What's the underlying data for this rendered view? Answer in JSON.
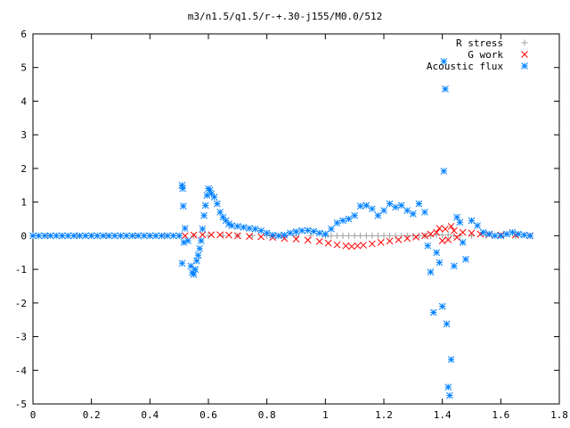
{
  "chart_data": {
    "type": "scatter",
    "title": "m3/n1.5/q1.5/r-+.30-j155/M0.0/512",
    "xlabel": "",
    "ylabel": "",
    "xlim": [
      0,
      1.8
    ],
    "ylim": [
      -5,
      6
    ],
    "grid": false,
    "legend_position": "top-right",
    "x_ticks": [
      "0",
      "0.2",
      "0.4",
      "0.6",
      "0.8",
      "1",
      "1.2",
      "1.4",
      "1.6",
      "1.8"
    ],
    "y_ticks": [
      "-5",
      "-4",
      "-3",
      "-2",
      "-1",
      "0",
      "1",
      "2",
      "3",
      "4",
      "5",
      "6"
    ],
    "x_tick_values": [
      0,
      0.2,
      0.4,
      0.6,
      0.8,
      1.0,
      1.2,
      1.4,
      1.6,
      1.8
    ],
    "y_tick_values": [
      -5,
      -4,
      -3,
      -2,
      -1,
      0,
      1,
      2,
      3,
      4,
      5,
      6
    ],
    "series": [
      {
        "name": "R stress",
        "marker": "plus",
        "color": "#a0a0a0",
        "points": [
          [
            0.0,
            0
          ],
          [
            0.05,
            0
          ],
          [
            0.1,
            0
          ],
          [
            0.15,
            0
          ],
          [
            0.2,
            0
          ],
          [
            0.25,
            0
          ],
          [
            0.3,
            0
          ],
          [
            0.35,
            0
          ],
          [
            0.4,
            0
          ],
          [
            0.45,
            0
          ],
          [
            0.5,
            0
          ],
          [
            0.55,
            0
          ],
          [
            0.6,
            0
          ],
          [
            0.65,
            0
          ],
          [
            0.7,
            0
          ],
          [
            0.75,
            0
          ],
          [
            0.8,
            0
          ],
          [
            0.85,
            0
          ],
          [
            0.9,
            0
          ],
          [
            0.95,
            0
          ],
          [
            1.0,
            0
          ],
          [
            1.02,
            0
          ],
          [
            1.04,
            0
          ],
          [
            1.06,
            0
          ],
          [
            1.08,
            0
          ],
          [
            1.1,
            0
          ],
          [
            1.12,
            0
          ],
          [
            1.14,
            0
          ],
          [
            1.16,
            0
          ],
          [
            1.18,
            0
          ],
          [
            1.2,
            0
          ],
          [
            1.22,
            0
          ],
          [
            1.24,
            0
          ],
          [
            1.26,
            0
          ],
          [
            1.28,
            0
          ],
          [
            1.3,
            0
          ],
          [
            1.32,
            0
          ],
          [
            1.34,
            0
          ],
          [
            1.36,
            0
          ],
          [
            1.38,
            0.02
          ],
          [
            1.4,
            0.02
          ],
          [
            1.42,
            0.02
          ],
          [
            1.44,
            0
          ],
          [
            1.46,
            0
          ],
          [
            1.5,
            0
          ],
          [
            1.55,
            0
          ],
          [
            1.6,
            0
          ],
          [
            1.65,
            0
          ],
          [
            1.7,
            0
          ]
        ]
      },
      {
        "name": "G work",
        "marker": "x",
        "color": "#ff0000",
        "points": [
          [
            0.52,
            0.0
          ],
          [
            0.55,
            0.02
          ],
          [
            0.58,
            0.03
          ],
          [
            0.61,
            0.03
          ],
          [
            0.64,
            0.03
          ],
          [
            0.67,
            0.02
          ],
          [
            0.7,
            0.0
          ],
          [
            0.74,
            -0.02
          ],
          [
            0.78,
            -0.03
          ],
          [
            0.82,
            -0.05
          ],
          [
            0.86,
            -0.08
          ],
          [
            0.9,
            -0.1
          ],
          [
            0.94,
            -0.13
          ],
          [
            0.98,
            -0.17
          ],
          [
            1.01,
            -0.22
          ],
          [
            1.04,
            -0.27
          ],
          [
            1.07,
            -0.3
          ],
          [
            1.09,
            -0.32
          ],
          [
            1.11,
            -0.3
          ],
          [
            1.13,
            -0.28
          ],
          [
            1.16,
            -0.24
          ],
          [
            1.19,
            -0.2
          ],
          [
            1.22,
            -0.16
          ],
          [
            1.25,
            -0.12
          ],
          [
            1.28,
            -0.08
          ],
          [
            1.31,
            -0.04
          ],
          [
            1.34,
            0.0
          ],
          [
            1.36,
            0.05
          ],
          [
            1.38,
            0.1
          ],
          [
            1.39,
            0.22
          ],
          [
            1.4,
            -0.15
          ],
          [
            1.41,
            0.2
          ],
          [
            1.42,
            -0.12
          ],
          [
            1.43,
            0.28
          ],
          [
            1.44,
            0.15
          ],
          [
            1.45,
            -0.05
          ],
          [
            1.47,
            0.1
          ],
          [
            1.5,
            0.08
          ],
          [
            1.53,
            0.05
          ],
          [
            1.56,
            0.04
          ],
          [
            1.6,
            0.02
          ],
          [
            1.65,
            0.02
          ],
          [
            1.7,
            0.0
          ]
        ]
      },
      {
        "name": "Acoustic flux",
        "marker": "star",
        "color": "#0080ff",
        "points": [
          [
            0.0,
            0
          ],
          [
            0.02,
            0
          ],
          [
            0.04,
            0
          ],
          [
            0.06,
            0
          ],
          [
            0.08,
            0
          ],
          [
            0.1,
            0
          ],
          [
            0.12,
            0
          ],
          [
            0.14,
            0
          ],
          [
            0.16,
            0
          ],
          [
            0.18,
            0
          ],
          [
            0.2,
            0
          ],
          [
            0.22,
            0
          ],
          [
            0.24,
            0
          ],
          [
            0.26,
            0
          ],
          [
            0.28,
            0
          ],
          [
            0.3,
            0
          ],
          [
            0.32,
            0
          ],
          [
            0.34,
            0
          ],
          [
            0.36,
            0
          ],
          [
            0.38,
            0
          ],
          [
            0.4,
            0
          ],
          [
            0.42,
            0
          ],
          [
            0.44,
            0
          ],
          [
            0.46,
            0
          ],
          [
            0.48,
            0
          ],
          [
            0.5,
            0
          ],
          [
            0.51,
            1.5
          ],
          [
            0.512,
            1.4
          ],
          [
            0.514,
            0.88
          ],
          [
            0.516,
            -0.2
          ],
          [
            0.51,
            -0.82
          ],
          [
            0.52,
            0.22
          ],
          [
            0.53,
            -0.15
          ],
          [
            0.54,
            -0.9
          ],
          [
            0.545,
            -1.1
          ],
          [
            0.55,
            -1.15
          ],
          [
            0.555,
            -1.0
          ],
          [
            0.56,
            -0.75
          ],
          [
            0.565,
            -0.58
          ],
          [
            0.57,
            -0.38
          ],
          [
            0.575,
            -0.15
          ],
          [
            0.58,
            0.2
          ],
          [
            0.585,
            0.6
          ],
          [
            0.59,
            0.9
          ],
          [
            0.595,
            1.2
          ],
          [
            0.6,
            1.4
          ],
          [
            0.605,
            1.35
          ],
          [
            0.61,
            1.25
          ],
          [
            0.62,
            1.15
          ],
          [
            0.63,
            0.95
          ],
          [
            0.64,
            0.7
          ],
          [
            0.65,
            0.55
          ],
          [
            0.66,
            0.45
          ],
          [
            0.67,
            0.35
          ],
          [
            0.68,
            0.3
          ],
          [
            0.7,
            0.28
          ],
          [
            0.72,
            0.25
          ],
          [
            0.74,
            0.22
          ],
          [
            0.76,
            0.2
          ],
          [
            0.78,
            0.15
          ],
          [
            0.8,
            0.08
          ],
          [
            0.82,
            0.02
          ],
          [
            0.84,
            0.0
          ],
          [
            0.86,
            0.02
          ],
          [
            0.88,
            0.08
          ],
          [
            0.9,
            0.12
          ],
          [
            0.92,
            0.15
          ],
          [
            0.94,
            0.16
          ],
          [
            0.96,
            0.13
          ],
          [
            0.98,
            0.08
          ],
          [
            1.0,
            0.05
          ],
          [
            1.02,
            0.2
          ],
          [
            1.04,
            0.38
          ],
          [
            1.06,
            0.45
          ],
          [
            1.08,
            0.5
          ],
          [
            1.1,
            0.6
          ],
          [
            1.12,
            0.88
          ],
          [
            1.14,
            0.9
          ],
          [
            1.16,
            0.8
          ],
          [
            1.18,
            0.6
          ],
          [
            1.2,
            0.75
          ],
          [
            1.22,
            0.95
          ],
          [
            1.24,
            0.85
          ],
          [
            1.26,
            0.9
          ],
          [
            1.28,
            0.75
          ],
          [
            1.3,
            0.65
          ],
          [
            1.32,
            0.95
          ],
          [
            1.34,
            0.7
          ],
          [
            1.35,
            -0.3
          ],
          [
            1.36,
            -1.08
          ],
          [
            1.37,
            -2.28
          ],
          [
            1.38,
            -0.5
          ],
          [
            1.39,
            -0.8
          ],
          [
            1.4,
            -2.1
          ],
          [
            1.405,
            5.18
          ],
          [
            1.41,
            4.36
          ],
          [
            1.405,
            1.92
          ],
          [
            1.42,
            -4.5
          ],
          [
            1.425,
            -4.75
          ],
          [
            1.43,
            -3.68
          ],
          [
            1.415,
            -2.62
          ],
          [
            1.44,
            -0.9
          ],
          [
            1.45,
            0.55
          ],
          [
            1.46,
            0.4
          ],
          [
            1.47,
            -0.2
          ],
          [
            1.48,
            -0.7
          ],
          [
            1.5,
            0.45
          ],
          [
            1.52,
            0.3
          ],
          [
            1.54,
            0.1
          ],
          [
            1.56,
            0.05
          ],
          [
            1.58,
            0.0
          ],
          [
            1.6,
            0.0
          ],
          [
            1.62,
            0.05
          ],
          [
            1.64,
            0.1
          ],
          [
            1.66,
            0.05
          ],
          [
            1.68,
            0.02
          ],
          [
            1.7,
            0.0
          ]
        ]
      }
    ]
  }
}
